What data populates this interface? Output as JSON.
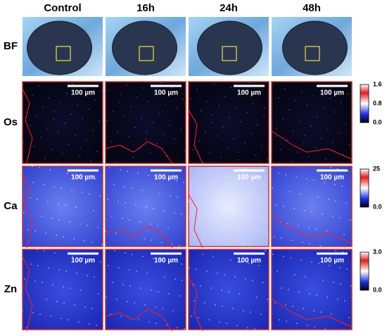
{
  "columns": [
    "Control",
    "16h",
    "24h",
    "48h"
  ],
  "rows": [
    {
      "label": "BF"
    },
    {
      "label": "Os",
      "scale_bars": [
        "100 µm",
        "100 µm",
        "100 µm",
        "100 µm"
      ],
      "colorbar": [
        "1.6",
        "0.8",
        "0.0"
      ]
    },
    {
      "label": "Ca",
      "scale_bars": [
        "100 µm",
        "100 µm",
        "100 µm",
        "100 µm"
      ],
      "colorbar": [
        "25",
        "0.0"
      ]
    },
    {
      "label": "Zn",
      "scale_bars": [
        "100 µm",
        "100 µm",
        "100 µm",
        "100 µm"
      ],
      "colorbar": [
        "3.0",
        "0.0"
      ]
    }
  ]
}
